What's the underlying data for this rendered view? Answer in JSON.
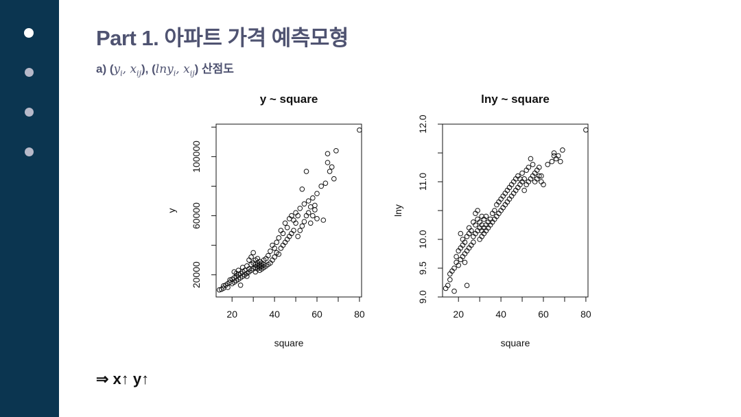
{
  "slide": {
    "title": "Part 1. 아파트 가격 예측모형",
    "subtitle": {
      "prefix": "a) (",
      "y_i": "y",
      "y_i_sub": "i",
      "comma": ", ",
      "x_ij": "x",
      "x_ij_sub": "ij",
      "mid": "), (",
      "lny_i": "lny",
      "lny_i_sub": "i",
      "comma2": ", ",
      "x_ij2": "x",
      "x_ij2_sub": "ij",
      "suffix": ") 산점도"
    },
    "conclusion": "⇒  x↑ y↑"
  },
  "sidebar": {
    "dots": [
      "active",
      "inactive",
      "inactive",
      "inactive"
    ]
  },
  "chart_data": [
    {
      "type": "scatter",
      "title": "y ~ square",
      "xlabel": "square",
      "ylabel": "y",
      "xlim": [
        12.5,
        81
      ],
      "ylim": [
        5000,
        122000
      ],
      "x_ticks": [
        20,
        40,
        60,
        80
      ],
      "y_ticks": [
        20000,
        60000,
        100000
      ],
      "y_minor_ticks": [
        20000,
        40000,
        60000,
        80000,
        100000,
        120000
      ],
      "points": [
        [
          14,
          9800
        ],
        [
          15,
          10200
        ],
        [
          16,
          11000
        ],
        [
          16,
          12500
        ],
        [
          17,
          13000
        ],
        [
          18,
          11500
        ],
        [
          18,
          14000
        ],
        [
          19,
          15000
        ],
        [
          19,
          16500
        ],
        [
          20,
          14000
        ],
        [
          20,
          17000
        ],
        [
          21,
          15000
        ],
        [
          21,
          18000
        ],
        [
          21,
          22000
        ],
        [
          22,
          16000
        ],
        [
          22,
          19000
        ],
        [
          22,
          21000
        ],
        [
          23,
          17000
        ],
        [
          23,
          20000
        ],
        [
          23,
          23000
        ],
        [
          24,
          13000
        ],
        [
          24,
          18000
        ],
        [
          24,
          21000
        ],
        [
          25,
          19000
        ],
        [
          25,
          22000
        ],
        [
          25,
          25000
        ],
        [
          26,
          20000
        ],
        [
          26,
          23000
        ],
        [
          27,
          19000
        ],
        [
          27,
          21000
        ],
        [
          27,
          26000
        ],
        [
          28,
          22000
        ],
        [
          28,
          24000
        ],
        [
          28,
          30000
        ],
        [
          29,
          23000
        ],
        [
          29,
          27000
        ],
        [
          29,
          32000
        ],
        [
          30,
          24000
        ],
        [
          30,
          28000
        ],
        [
          30,
          35000
        ],
        [
          31,
          22000
        ],
        [
          31,
          25000
        ],
        [
          31,
          27000
        ],
        [
          31,
          30000
        ],
        [
          32,
          24000
        ],
        [
          32,
          26000
        ],
        [
          32,
          28000
        ],
        [
          32,
          31000
        ],
        [
          33,
          23000
        ],
        [
          33,
          25000
        ],
        [
          33,
          27000
        ],
        [
          33,
          29000
        ],
        [
          34,
          24000
        ],
        [
          34,
          26000
        ],
        [
          34,
          28000
        ],
        [
          35,
          25000
        ],
        [
          35,
          27000
        ],
        [
          35,
          30000
        ],
        [
          36,
          26000
        ],
        [
          36,
          31000
        ],
        [
          37,
          27000
        ],
        [
          37,
          33000
        ],
        [
          38,
          28000
        ],
        [
          38,
          36000
        ],
        [
          39,
          30000
        ],
        [
          39,
          40000
        ],
        [
          40,
          32000
        ],
        [
          40,
          38000
        ],
        [
          41,
          35000
        ],
        [
          41,
          42000
        ],
        [
          42,
          34000
        ],
        [
          42,
          45000
        ],
        [
          43,
          38000
        ],
        [
          43,
          50000
        ],
        [
          44,
          40000
        ],
        [
          44,
          48000
        ],
        [
          45,
          42000
        ],
        [
          45,
          55000
        ],
        [
          46,
          44000
        ],
        [
          46,
          52000
        ],
        [
          47,
          46000
        ],
        [
          47,
          58000
        ],
        [
          48,
          48000
        ],
        [
          48,
          60000
        ],
        [
          49,
          50000
        ],
        [
          49,
          57000
        ],
        [
          50,
          55000
        ],
        [
          50,
          62000
        ],
        [
          51,
          46000
        ],
        [
          51,
          60000
        ],
        [
          52,
          50000
        ],
        [
          52,
          65000
        ],
        [
          53,
          53000
        ],
        [
          53,
          78000
        ],
        [
          54,
          56000
        ],
        [
          54,
          68000
        ],
        [
          55,
          60000
        ],
        [
          55,
          90000
        ],
        [
          56,
          62000
        ],
        [
          56,
          70000
        ],
        [
          57,
          55000
        ],
        [
          57,
          66000
        ],
        [
          58,
          60000
        ],
        [
          58,
          72000
        ],
        [
          59,
          64000
        ],
        [
          59,
          67000
        ],
        [
          60,
          58000
        ],
        [
          60,
          75000
        ],
        [
          62,
          80000
        ],
        [
          63,
          57000
        ],
        [
          64,
          82000
        ],
        [
          65,
          96000
        ],
        [
          65,
          102000
        ],
        [
          66,
          90000
        ],
        [
          67,
          93000
        ],
        [
          68,
          85000
        ],
        [
          69,
          104000
        ],
        [
          80,
          118000
        ]
      ]
    },
    {
      "type": "scatter",
      "title": "lny ~ square",
      "xlabel": "square",
      "ylabel": "lny",
      "xlim": [
        12.5,
        81
      ],
      "ylim": [
        9.0,
        12.0
      ],
      "x_ticks": [
        20,
        40,
        60,
        80
      ],
      "y_ticks": [
        9.0,
        9.5,
        10.0,
        11.0,
        12.0
      ],
      "points": [
        [
          14,
          9.15
        ],
        [
          15,
          9.2
        ],
        [
          16,
          9.3
        ],
        [
          16,
          9.4
        ],
        [
          17,
          9.45
        ],
        [
          18,
          9.1
        ],
        [
          18,
          9.5
        ],
        [
          19,
          9.6
        ],
        [
          19,
          9.7
        ],
        [
          20,
          9.55
        ],
        [
          20,
          9.8
        ],
        [
          21,
          9.65
        ],
        [
          21,
          9.85
        ],
        [
          21,
          10.1
        ],
        [
          22,
          9.7
        ],
        [
          22,
          9.9
        ],
        [
          22,
          10.0
        ],
        [
          23,
          9.6
        ],
        [
          23,
          9.75
        ],
        [
          23,
          9.95
        ],
        [
          24,
          9.2
        ],
        [
          24,
          9.8
        ],
        [
          24,
          10.05
        ],
        [
          25,
          9.85
        ],
        [
          25,
          10.1
        ],
        [
          25,
          10.2
        ],
        [
          26,
          9.9
        ],
        [
          26,
          10.15
        ],
        [
          27,
          9.95
        ],
        [
          27,
          10.05
        ],
        [
          27,
          10.3
        ],
        [
          28,
          10.1
        ],
        [
          28,
          10.25
        ],
        [
          28,
          10.45
        ],
        [
          29,
          10.15
        ],
        [
          29,
          10.35
        ],
        [
          29,
          10.5
        ],
        [
          30,
          10.0
        ],
        [
          30,
          10.2
        ],
        [
          30,
          10.3
        ],
        [
          31,
          10.05
        ],
        [
          31,
          10.15
        ],
        [
          31,
          10.25
        ],
        [
          31,
          10.4
        ],
        [
          32,
          10.1
        ],
        [
          32,
          10.2
        ],
        [
          32,
          10.35
        ],
        [
          33,
          10.15
        ],
        [
          33,
          10.25
        ],
        [
          33,
          10.4
        ],
        [
          34,
          10.2
        ],
        [
          34,
          10.3
        ],
        [
          35,
          10.25
        ],
        [
          35,
          10.35
        ],
        [
          36,
          10.3
        ],
        [
          36,
          10.45
        ],
        [
          37,
          10.35
        ],
        [
          37,
          10.5
        ],
        [
          38,
          10.4
        ],
        [
          38,
          10.6
        ],
        [
          39,
          10.45
        ],
        [
          39,
          10.65
        ],
        [
          40,
          10.5
        ],
        [
          40,
          10.7
        ],
        [
          41,
          10.55
        ],
        [
          41,
          10.75
        ],
        [
          42,
          10.6
        ],
        [
          42,
          10.8
        ],
        [
          43,
          10.65
        ],
        [
          43,
          10.85
        ],
        [
          44,
          10.7
        ],
        [
          44,
          10.9
        ],
        [
          45,
          10.75
        ],
        [
          45,
          10.95
        ],
        [
          46,
          10.8
        ],
        [
          46,
          11.0
        ],
        [
          47,
          10.85
        ],
        [
          47,
          11.05
        ],
        [
          48,
          10.9
        ],
        [
          48,
          11.1
        ],
        [
          49,
          10.95
        ],
        [
          49,
          11.05
        ],
        [
          50,
          11.0
        ],
        [
          50,
          11.15
        ],
        [
          51,
          10.85
        ],
        [
          51,
          11.05
        ],
        [
          52,
          10.95
        ],
        [
          52,
          11.2
        ],
        [
          53,
          11.0
        ],
        [
          53,
          11.25
        ],
        [
          54,
          11.05
        ],
        [
          54,
          11.4
        ],
        [
          55,
          11.1
        ],
        [
          55,
          11.3
        ],
        [
          56,
          11.0
        ],
        [
          56,
          11.15
        ],
        [
          57,
          11.05
        ],
        [
          57,
          11.2
        ],
        [
          58,
          11.1
        ],
        [
          58,
          11.25
        ],
        [
          59,
          11.0
        ],
        [
          59,
          11.1
        ],
        [
          60,
          10.95
        ],
        [
          62,
          11.3
        ],
        [
          64,
          11.35
        ],
        [
          65,
          11.45
        ],
        [
          65,
          11.5
        ],
        [
          66,
          11.4
        ],
        [
          67,
          11.45
        ],
        [
          68,
          11.35
        ],
        [
          69,
          11.55
        ],
        [
          80,
          11.9
        ]
      ]
    }
  ]
}
